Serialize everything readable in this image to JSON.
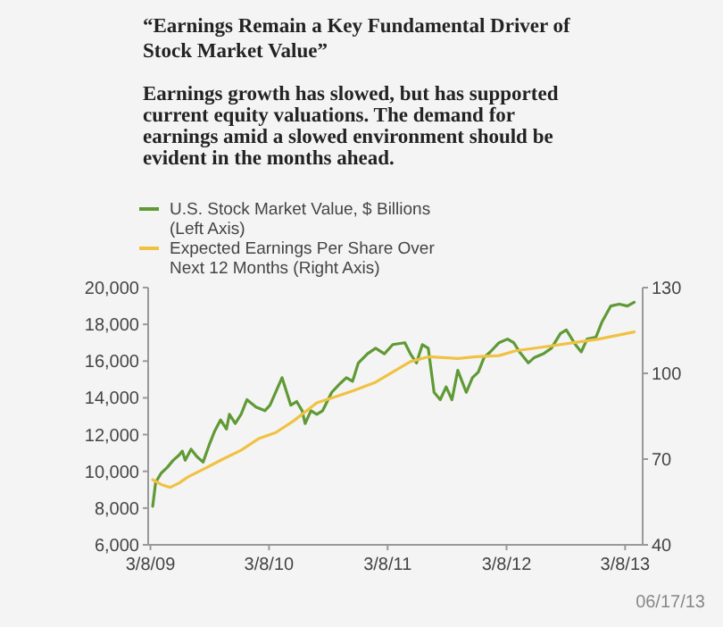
{
  "chart_data": {
    "type": "line",
    "title": "“Earnings Remain a Key Fundamental Driver of Stock Market Value”",
    "subtitle": "Earnings growth has slowed, but has supported current equity valuations. The demand for earnings amid a slowed environment should be evident in the months ahead.",
    "annotations": [
      "06/17/13"
    ],
    "xlim": [
      "2009-03-01",
      "2013-05-01"
    ],
    "xticks": [
      {
        "value": "2009-03-08",
        "label": "3/8/09"
      },
      {
        "value": "2010-03-08",
        "label": "3/8/10"
      },
      {
        "value": "2011-03-08",
        "label": "3/8/11"
      },
      {
        "value": "2012-03-08",
        "label": "3/8/12"
      },
      {
        "value": "2013-03-08",
        "label": "3/8/13"
      }
    ],
    "ylim": [
      6000,
      20000
    ],
    "yticks": [
      {
        "value": 6000,
        "label": "6,000"
      },
      {
        "value": 8000,
        "label": "8,000"
      },
      {
        "value": 10000,
        "label": "10,000"
      },
      {
        "value": 12000,
        "label": "12,000"
      },
      {
        "value": 14000,
        "label": "14,000"
      },
      {
        "value": 16000,
        "label": "16,000"
      },
      {
        "value": 18000,
        "label": "18,000"
      },
      {
        "value": 20000,
        "label": "20,000"
      }
    ],
    "y2lim": [
      40,
      130
    ],
    "y2ticks": [
      40,
      70,
      100,
      130
    ],
    "legend": "top left",
    "grid": false,
    "marker": "none",
    "line_style": "solid",
    "series": [
      {
        "name": "U.S. Stock Market Value, $ Billions (Left Axis)",
        "color": "#5f9a35",
        "x": [
          "2009-03-15",
          "2009-03-24",
          "2009-04-10",
          "2009-04-28",
          "2009-05-17",
          "2009-06-05",
          "2009-06-14",
          "2009-06-23",
          "2009-07-11",
          "2009-07-29",
          "2009-08-17",
          "2009-09-04",
          "2009-09-22",
          "2009-10-10",
          "2009-10-28",
          "2009-11-06",
          "2009-11-24",
          "2009-12-12",
          "2009-12-30",
          "2010-01-27",
          "2010-02-23",
          "2010-03-11",
          "2010-04-17",
          "2010-05-14",
          "2010-06-01",
          "2010-06-18",
          "2010-06-27",
          "2010-07-15",
          "2010-08-02",
          "2010-08-20",
          "2010-09-17",
          "2010-10-14",
          "2010-11-01",
          "2010-11-20",
          "2010-12-08",
          "2011-01-05",
          "2011-01-30",
          "2011-02-26",
          "2011-03-24",
          "2011-04-30",
          "2011-05-17",
          "2011-06-05",
          "2011-06-23",
          "2011-07-11",
          "2011-07-29",
          "2011-08-17",
          "2011-09-04",
          "2011-09-22",
          "2011-10-10",
          "2011-11-05",
          "2011-11-24",
          "2011-12-12",
          "2011-12-30",
          "2012-01-18",
          "2012-02-14",
          "2012-03-11",
          "2012-03-30",
          "2012-04-17",
          "2012-05-14",
          "2012-06-02",
          "2012-06-30",
          "2012-07-24",
          "2012-08-21",
          "2012-09-08",
          "2012-10-06",
          "2012-10-24",
          "2012-11-11",
          "2012-12-08",
          "2012-12-26",
          "2013-01-23",
          "2013-02-18",
          "2013-03-15",
          "2013-04-05"
        ],
        "values": [
          8100,
          9400,
          9900,
          10200,
          10600,
          10900,
          11100,
          10600,
          11200,
          10800,
          10500,
          11400,
          12200,
          12800,
          12300,
          13100,
          12600,
          13100,
          13900,
          13500,
          13300,
          13600,
          15100,
          13600,
          13800,
          13300,
          12600,
          13300,
          13100,
          13300,
          14300,
          14800,
          15100,
          14900,
          15900,
          16400,
          16700,
          16400,
          16900,
          17000,
          16400,
          15900,
          16900,
          16700,
          14300,
          13900,
          14600,
          13900,
          15500,
          14300,
          15100,
          15400,
          16200,
          16500,
          17000,
          17200,
          17000,
          16500,
          15900,
          16200,
          16400,
          16700,
          17500,
          17700,
          16900,
          16500,
          17200,
          17300,
          18100,
          19000,
          19100,
          19000,
          19200
        ]
      },
      {
        "name": "Expected Earnings Per Share Over Next 12 Months (Right Axis)",
        "color": "#f0c243",
        "axis": "y2",
        "x": [
          "2009-03-15",
          "2009-04-10",
          "2009-05-08",
          "2009-06-05",
          "2009-07-02",
          "2009-08-26",
          "2009-10-17",
          "2009-12-12",
          "2010-02-05",
          "2010-03-29",
          "2010-05-23",
          "2010-08-02",
          "2010-09-26",
          "2010-11-20",
          "2011-01-30",
          "2011-05-17",
          "2011-07-11",
          "2011-10-10",
          "2011-12-06",
          "2012-02-14",
          "2012-04-05",
          "2012-07-04",
          "2012-10-06",
          "2012-12-17",
          "2013-04-05"
        ],
        "values": [
          62.8,
          61.1,
          60.1,
          61.7,
          63.8,
          66.9,
          70,
          73.1,
          77.2,
          79.3,
          83.4,
          89.7,
          91.7,
          93.8,
          96.9,
          104.1,
          105.8,
          105.2,
          105.8,
          106.2,
          107.9,
          109.3,
          110.8,
          112,
          114.5
        ]
      }
    ]
  }
}
